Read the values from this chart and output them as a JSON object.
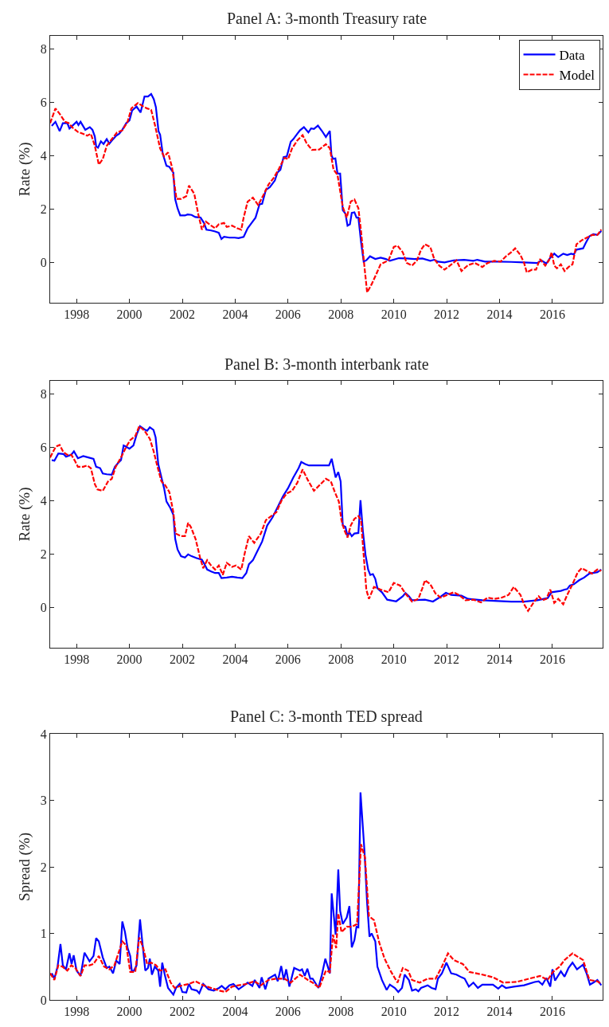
{
  "chart_data": [
    {
      "type": "line",
      "title": "Panel A: 3-month Treasury rate",
      "ylabel": "Rate (%)",
      "xlim": [
        1997.0,
        2017.9
      ],
      "xticks": [
        1998,
        2000,
        2002,
        2004,
        2006,
        2008,
        2010,
        2012,
        2014,
        2016
      ],
      "ylim": [
        -1.5,
        8.5
      ],
      "yticks": [
        0,
        2,
        4,
        6,
        8
      ],
      "legend": "top right",
      "series": [
        {
          "name": "Data",
          "color": "#0000ff",
          "line_style": "solid",
          "x": [
            1997.06,
            1997.2,
            1997.36,
            1997.48,
            1997.65,
            1997.73,
            1998.0,
            1998.07,
            1998.15,
            1998.33,
            1998.5,
            1998.6,
            1998.69,
            1998.74,
            1998.81,
            1998.92,
            1999.02,
            1999.14,
            1999.24,
            1999.38,
            1999.5,
            1999.61,
            1999.73,
            1999.88,
            2000.0,
            2000.1,
            2000.27,
            2000.42,
            2000.57,
            2000.7,
            2000.82,
            2000.92,
            2001.0,
            2001.1,
            2001.16,
            2001.26,
            2001.4,
            2001.5,
            2001.66,
            2001.73,
            2001.82,
            2001.92,
            2002.1,
            2002.2,
            2002.35,
            2002.49,
            2002.69,
            2002.82,
            2002.91,
            2003.09,
            2003.24,
            2003.38,
            2003.48,
            2003.58,
            2003.78,
            2003.98,
            2004.13,
            2004.32,
            2004.47,
            2004.62,
            2004.77,
            2004.92,
            2005.02,
            2005.16,
            2005.31,
            2005.5,
            2005.6,
            2005.71,
            2005.83,
            2005.95,
            2006.1,
            2006.2,
            2006.35,
            2006.45,
            2006.6,
            2006.77,
            2006.87,
            2006.98,
            2007.13,
            2007.28,
            2007.43,
            2007.58,
            2007.64,
            2007.7,
            2007.79,
            2007.87,
            2007.97,
            2008.07,
            2008.17,
            2008.25,
            2008.34,
            2008.41,
            2008.51,
            2008.59,
            2008.66,
            2008.76,
            2008.86,
            2008.96,
            2009.1,
            2009.3,
            2009.5,
            2009.7,
            2009.85,
            2010.19,
            2010.49,
            2010.79,
            2011.08,
            2011.38,
            2011.53,
            2011.67,
            2011.92,
            2012.27,
            2012.66,
            2013.01,
            2013.16,
            2013.45,
            2013.95,
            2014.44,
            2014.93,
            2015.43,
            2015.58,
            2015.77,
            2015.92,
            2016.07,
            2016.22,
            2016.41,
            2016.56,
            2016.71,
            2016.81,
            2016.91,
            2017.16,
            2017.26,
            2017.4,
            2017.55,
            2017.7,
            2017.85
          ],
          "values": [
            5.13,
            5.28,
            4.93,
            5.23,
            5.23,
            5.03,
            5.28,
            5.16,
            5.28,
            4.98,
            5.08,
            4.98,
            4.73,
            4.36,
            4.31,
            4.55,
            4.45,
            4.63,
            4.46,
            4.63,
            4.76,
            4.83,
            4.98,
            5.23,
            5.33,
            5.7,
            5.85,
            5.63,
            6.23,
            6.23,
            6.32,
            6.13,
            5.83,
            4.93,
            4.8,
            4.08,
            3.63,
            3.6,
            3.38,
            2.38,
            2.04,
            1.77,
            1.77,
            1.81,
            1.79,
            1.71,
            1.69,
            1.49,
            1.24,
            1.21,
            1.17,
            1.12,
            0.89,
            0.97,
            0.94,
            0.94,
            0.92,
            0.97,
            1.29,
            1.49,
            1.69,
            2.19,
            2.21,
            2.73,
            2.83,
            3.08,
            3.38,
            3.48,
            3.96,
            3.98,
            4.53,
            4.63,
            4.83,
            4.96,
            5.08,
            4.88,
            5.03,
            5.01,
            5.14,
            4.94,
            4.71,
            4.94,
            4.04,
            3.89,
            3.91,
            3.34,
            3.34,
            1.97,
            1.84,
            1.39,
            1.44,
            1.87,
            1.89,
            1.69,
            1.69,
            0.79,
            0.04,
            0.09,
            0.24,
            0.14,
            0.19,
            0.14,
            0.07,
            0.17,
            0.16,
            0.14,
            0.16,
            0.07,
            0.11,
            0.04,
            0.01,
            0.09,
            0.11,
            0.07,
            0.11,
            0.04,
            0.04,
            0.03,
            0.01,
            -0.01,
            0.09,
            -0.03,
            0.19,
            0.34,
            0.21,
            0.34,
            0.29,
            0.34,
            0.31,
            0.49,
            0.54,
            0.74,
            0.99,
            1.07,
            1.04,
            1.19
          ]
        },
        {
          "name": "Model",
          "color": "#ff0000",
          "line_style": "dashed",
          "x": [
            1997.0,
            1997.2,
            1997.36,
            1997.56,
            1997.7,
            1997.85,
            1998.05,
            1998.25,
            1998.4,
            1998.54,
            1998.69,
            1998.84,
            1998.99,
            1999.14,
            1999.33,
            1999.53,
            1999.73,
            1999.93,
            2000.07,
            2000.32,
            2000.52,
            2000.67,
            2000.82,
            2000.96,
            2001.16,
            2001.31,
            2001.46,
            2001.61,
            2001.78,
            2001.95,
            2002.15,
            2002.25,
            2002.45,
            2002.61,
            2002.74,
            2002.89,
            2003.09,
            2003.24,
            2003.38,
            2003.58,
            2003.68,
            2003.88,
            2004.08,
            2004.23,
            2004.32,
            2004.47,
            2004.67,
            2004.87,
            2005.07,
            2005.26,
            2005.46,
            2005.66,
            2005.86,
            2006.0,
            2006.15,
            2006.35,
            2006.55,
            2006.7,
            2006.9,
            2007.18,
            2007.43,
            2007.58,
            2007.72,
            2007.87,
            2007.97,
            2008.07,
            2008.22,
            2008.37,
            2008.51,
            2008.66,
            2008.76,
            2008.86,
            2008.99,
            2009.16,
            2009.3,
            2009.5,
            2009.8,
            2010.0,
            2010.14,
            2010.34,
            2010.49,
            2010.69,
            2010.88,
            2011.03,
            2011.18,
            2011.38,
            2011.53,
            2011.72,
            2011.92,
            2012.12,
            2012.37,
            2012.56,
            2012.81,
            2013.06,
            2013.35,
            2013.55,
            2013.8,
            2014.04,
            2014.24,
            2014.44,
            2014.59,
            2014.79,
            2014.93,
            2015.03,
            2015.23,
            2015.38,
            2015.53,
            2015.73,
            2015.87,
            2015.97,
            2016.07,
            2016.17,
            2016.32,
            2016.46,
            2016.61,
            2016.76,
            2016.91,
            2017.11,
            2017.3,
            2017.5,
            2017.7,
            2017.85
          ],
          "values": [
            5.23,
            5.78,
            5.58,
            5.28,
            5.23,
            5.06,
            4.9,
            4.83,
            4.76,
            4.83,
            4.38,
            3.68,
            3.88,
            4.38,
            4.63,
            4.88,
            4.96,
            5.28,
            5.78,
            5.98,
            5.86,
            5.78,
            5.73,
            5.18,
            4.28,
            3.98,
            4.13,
            3.58,
            2.39,
            2.39,
            2.49,
            2.89,
            2.59,
            1.79,
            1.24,
            1.54,
            1.39,
            1.29,
            1.44,
            1.49,
            1.34,
            1.39,
            1.29,
            1.24,
            1.69,
            2.29,
            2.44,
            2.16,
            2.54,
            2.93,
            3.18,
            3.53,
            3.93,
            3.88,
            4.28,
            4.58,
            4.78,
            4.48,
            4.23,
            4.24,
            4.44,
            4.29,
            3.49,
            3.29,
            2.69,
            2.09,
            1.69,
            2.29,
            2.37,
            2.04,
            1.19,
            0.14,
            -1.11,
            -0.81,
            -0.51,
            -0.06,
            0.09,
            0.59,
            0.64,
            0.39,
            -0.01,
            -0.11,
            0.09,
            0.49,
            0.69,
            0.59,
            0.14,
            -0.11,
            -0.26,
            -0.11,
            0.09,
            -0.31,
            -0.09,
            -0.01,
            -0.16,
            -0.01,
            0.07,
            0.04,
            0.24,
            0.39,
            0.54,
            0.29,
            -0.01,
            -0.36,
            -0.26,
            -0.26,
            0.14,
            -0.11,
            0.09,
            0.39,
            -0.11,
            -0.21,
            -0.06,
            -0.31,
            -0.16,
            -0.06,
            0.69,
            0.84,
            0.94,
            1.04,
            1.04,
            1.24
          ]
        }
      ]
    },
    {
      "type": "line",
      "title": "Panel B: 3-month interbank rate",
      "ylabel": "Rate (%)",
      "xlim": [
        1997.0,
        2017.9
      ],
      "xticks": [
        1998,
        2000,
        2002,
        2004,
        2006,
        2008,
        2010,
        2012,
        2014,
        2016
      ],
      "ylim": [
        -1.5,
        8.5
      ],
      "yticks": [
        0,
        2,
        4,
        6,
        8
      ],
      "series": [
        {
          "color": "#0000ff",
          "line_style": "solid",
          "x": [
            1997.06,
            1997.16,
            1997.31,
            1997.5,
            1997.6,
            1997.8,
            1997.9,
            1998.05,
            1998.25,
            1998.44,
            1998.64,
            1998.74,
            1998.89,
            1998.99,
            1999.14,
            1999.33,
            1999.45,
            1999.58,
            1999.68,
            1999.78,
            1999.88,
            2000.0,
            2000.15,
            2000.27,
            2000.4,
            2000.57,
            2000.67,
            2000.77,
            2000.91,
            2000.99,
            2001.09,
            2001.21,
            2001.31,
            2001.4,
            2001.55,
            2001.66,
            2001.73,
            2001.82,
            2001.95,
            2002.1,
            2002.22,
            2002.35,
            2002.54,
            2002.74,
            2002.84,
            2002.94,
            2003.09,
            2003.24,
            2003.38,
            2003.48,
            2003.68,
            2003.88,
            2004.08,
            2004.27,
            2004.42,
            2004.52,
            2004.67,
            2004.82,
            2005.02,
            2005.21,
            2005.41,
            2005.61,
            2005.81,
            2006.0,
            2006.2,
            2006.4,
            2006.5,
            2006.65,
            2006.79,
            2007.13,
            2007.55,
            2007.65,
            2007.8,
            2007.9,
            2007.99,
            2008.07,
            2008.17,
            2008.25,
            2008.32,
            2008.41,
            2008.51,
            2008.66,
            2008.74,
            2008.83,
            2008.93,
            2009.03,
            2009.11,
            2009.21,
            2009.3,
            2009.38,
            2009.55,
            2009.75,
            2010.09,
            2010.34,
            2010.44,
            2010.57,
            2010.69,
            2011.18,
            2011.48,
            2011.72,
            2011.97,
            2012.17,
            2012.56,
            2012.81,
            2013.35,
            2013.95,
            2014.44,
            2014.93,
            2015.43,
            2015.82,
            2015.97,
            2016.32,
            2016.46,
            2016.56,
            2016.66,
            2016.81,
            2017.01,
            2017.2,
            2017.4,
            2017.7,
            2017.85
          ],
          "values": [
            5.53,
            5.51,
            5.78,
            5.76,
            5.66,
            5.73,
            5.86,
            5.6,
            5.68,
            5.63,
            5.58,
            5.28,
            5.23,
            5.03,
            5.0,
            4.98,
            5.28,
            5.43,
            5.53,
            6.08,
            6.03,
            5.96,
            6.08,
            6.48,
            6.8,
            6.68,
            6.63,
            6.76,
            6.66,
            6.38,
            5.38,
            4.88,
            4.48,
            3.98,
            3.73,
            3.48,
            2.58,
            2.18,
            1.93,
            1.88,
            2.0,
            1.93,
            1.86,
            1.8,
            1.63,
            1.43,
            1.36,
            1.3,
            1.3,
            1.11,
            1.13,
            1.16,
            1.13,
            1.11,
            1.3,
            1.63,
            1.78,
            2.08,
            2.48,
            3.08,
            3.38,
            3.78,
            4.18,
            4.48,
            4.88,
            5.23,
            5.46,
            5.38,
            5.33,
            5.33,
            5.33,
            5.58,
            4.88,
            5.08,
            4.73,
            3.08,
            3.03,
            2.68,
            2.83,
            2.68,
            2.78,
            2.8,
            4.03,
            2.88,
            1.98,
            1.43,
            1.23,
            1.26,
            1.08,
            0.73,
            0.58,
            0.3,
            0.24,
            0.43,
            0.55,
            0.43,
            0.28,
            0.3,
            0.23,
            0.38,
            0.56,
            0.48,
            0.45,
            0.33,
            0.28,
            0.25,
            0.23,
            0.23,
            0.28,
            0.36,
            0.58,
            0.63,
            0.68,
            0.7,
            0.83,
            0.88,
            1.03,
            1.13,
            1.28,
            1.33,
            1.43
          ]
        },
        {
          "color": "#ff0000",
          "line_style": "dashed",
          "x": [
            1997.0,
            1997.21,
            1997.36,
            1997.5,
            1997.65,
            1997.8,
            1997.95,
            1998.05,
            1998.25,
            1998.4,
            1998.54,
            1998.69,
            1998.79,
            1998.99,
            1999.19,
            1999.33,
            1999.48,
            1999.68,
            1999.88,
            2000.03,
            2000.22,
            2000.37,
            2000.57,
            2000.77,
            2000.91,
            2001.06,
            2001.21,
            2001.36,
            2001.51,
            2001.66,
            2001.75,
            2001.95,
            2002.1,
            2002.22,
            2002.32,
            2002.5,
            2002.67,
            2002.79,
            2002.94,
            2003.09,
            2003.24,
            2003.38,
            2003.53,
            2003.68,
            2003.88,
            2004.03,
            2004.23,
            2004.37,
            2004.52,
            2004.72,
            2004.97,
            2005.16,
            2005.36,
            2005.56,
            2005.76,
            2005.95,
            2006.15,
            2006.35,
            2006.55,
            2006.75,
            2006.98,
            2007.18,
            2007.43,
            2007.62,
            2007.77,
            2007.92,
            2008.02,
            2008.12,
            2008.25,
            2008.37,
            2008.51,
            2008.66,
            2008.76,
            2008.86,
            2008.96,
            2009.06,
            2009.25,
            2009.5,
            2009.8,
            2010.0,
            2010.24,
            2010.44,
            2010.69,
            2010.93,
            2011.08,
            2011.18,
            2011.38,
            2011.58,
            2011.77,
            2012.02,
            2012.27,
            2012.46,
            2012.71,
            2013.01,
            2013.3,
            2013.55,
            2013.8,
            2014.09,
            2014.34,
            2014.54,
            2014.79,
            2014.93,
            2015.08,
            2015.28,
            2015.48,
            2015.62,
            2015.77,
            2015.92,
            2016.07,
            2016.22,
            2016.41,
            2016.56,
            2016.76,
            2016.96,
            2017.11,
            2017.3,
            2017.5,
            2017.7,
            2017.85
          ],
          "values": [
            5.63,
            6.03,
            6.1,
            5.83,
            5.73,
            5.73,
            5.48,
            5.28,
            5.28,
            5.33,
            5.23,
            4.63,
            4.43,
            4.38,
            4.73,
            4.83,
            5.28,
            5.63,
            6.03,
            6.28,
            6.43,
            6.8,
            6.63,
            6.33,
            5.88,
            5.28,
            4.73,
            4.58,
            4.33,
            3.58,
            2.78,
            2.68,
            2.68,
            3.18,
            3.03,
            2.58,
            1.88,
            1.48,
            1.78,
            1.58,
            1.43,
            1.58,
            1.23,
            1.68,
            1.53,
            1.58,
            1.43,
            2.08,
            2.68,
            2.43,
            2.78,
            3.28,
            3.43,
            3.58,
            4.03,
            4.28,
            4.38,
            4.68,
            5.18,
            4.78,
            4.38,
            4.58,
            4.83,
            4.73,
            4.33,
            3.98,
            3.28,
            2.93,
            2.63,
            3.08,
            3.33,
            3.43,
            3.28,
            1.98,
            0.68,
            0.33,
            0.78,
            0.68,
            0.58,
            0.93,
            0.83,
            0.53,
            0.23,
            0.33,
            0.73,
            1.03,
            0.88,
            0.53,
            0.38,
            0.48,
            0.58,
            0.48,
            0.28,
            0.3,
            0.2,
            0.38,
            0.33,
            0.38,
            0.48,
            0.78,
            0.48,
            0.13,
            -0.12,
            0.18,
            0.43,
            0.28,
            0.33,
            0.68,
            0.18,
            0.33,
            0.13,
            0.48,
            0.88,
            1.33,
            1.48,
            1.38,
            1.28,
            1.43,
            1.38
          ]
        }
      ]
    },
    {
      "type": "line",
      "title": "Panel C: 3-month TED spread",
      "ylabel": "Spread (%)",
      "xlim": [
        1997.0,
        2017.9
      ],
      "xticks": [
        1998,
        2000,
        2002,
        2004,
        2006,
        2008,
        2010,
        2012,
        2014,
        2016
      ],
      "ylim": [
        0,
        4
      ],
      "yticks": [
        0,
        1,
        2,
        3,
        4
      ],
      "series": [
        {
          "color": "#0000ff",
          "line_style": "solid",
          "x": [
            1997.06,
            1997.16,
            1997.28,
            1997.39,
            1997.48,
            1997.6,
            1997.73,
            1997.81,
            1997.89,
            1998.0,
            1998.15,
            1998.3,
            1998.49,
            1998.64,
            1998.74,
            1998.84,
            1998.99,
            1999.14,
            1999.24,
            1999.38,
            1999.5,
            1999.63,
            1999.73,
            1999.83,
            1999.93,
            2000.03,
            2000.09,
            2000.17,
            2000.27,
            2000.4,
            2000.5,
            2000.6,
            2000.7,
            2000.77,
            2000.85,
            2000.96,
            2001.09,
            2001.16,
            2001.24,
            2001.33,
            2001.46,
            2001.66,
            2001.76,
            2001.9,
            2002.0,
            2002.15,
            2002.25,
            2002.35,
            2002.55,
            2002.64,
            2002.79,
            2002.99,
            2003.19,
            2003.39,
            2003.49,
            2003.63,
            2003.78,
            2003.93,
            2004.13,
            2004.27,
            2004.47,
            2004.65,
            2004.74,
            2004.92,
            2005.0,
            2005.14,
            2005.26,
            2005.51,
            2005.61,
            2005.74,
            2005.84,
            2005.93,
            2006.05,
            2006.23,
            2006.45,
            2006.53,
            2006.63,
            2006.73,
            2006.84,
            2006.93,
            2007.15,
            2007.28,
            2007.41,
            2007.58,
            2007.65,
            2007.8,
            2007.9,
            2007.97,
            2008.07,
            2008.22,
            2008.32,
            2008.41,
            2008.51,
            2008.59,
            2008.66,
            2008.74,
            2008.89,
            2008.99,
            2009.08,
            2009.16,
            2009.3,
            2009.38,
            2009.55,
            2009.73,
            2009.85,
            2010.04,
            2010.17,
            2010.31,
            2010.41,
            2010.57,
            2010.69,
            2010.83,
            2010.93,
            2011.03,
            2011.28,
            2011.43,
            2011.58,
            2011.67,
            2011.82,
            2011.99,
            2012.17,
            2012.37,
            2012.56,
            2012.68,
            2012.84,
            2013.01,
            2013.18,
            2013.35,
            2013.75,
            2013.95,
            2014.09,
            2014.24,
            2014.54,
            2014.93,
            2015.33,
            2015.48,
            2015.62,
            2015.77,
            2015.92,
            2016.0,
            2016.1,
            2016.32,
            2016.46,
            2016.61,
            2016.76,
            2016.93,
            2017.16,
            2017.3,
            2017.42,
            2017.55,
            2017.7,
            2017.85
          ],
          "values": [
            0.4,
            0.32,
            0.5,
            0.84,
            0.52,
            0.46,
            0.7,
            0.54,
            0.67,
            0.44,
            0.36,
            0.71,
            0.58,
            0.66,
            0.93,
            0.88,
            0.64,
            0.48,
            0.5,
            0.4,
            0.59,
            0.54,
            1.18,
            1.02,
            0.78,
            0.66,
            0.43,
            0.44,
            0.52,
            1.21,
            0.82,
            0.44,
            0.48,
            0.62,
            0.38,
            0.5,
            0.44,
            0.2,
            0.56,
            0.39,
            0.18,
            0.08,
            0.18,
            0.24,
            0.12,
            0.11,
            0.24,
            0.16,
            0.14,
            0.1,
            0.24,
            0.16,
            0.14,
            0.18,
            0.21,
            0.16,
            0.22,
            0.24,
            0.16,
            0.2,
            0.26,
            0.21,
            0.3,
            0.18,
            0.34,
            0.16,
            0.32,
            0.38,
            0.28,
            0.51,
            0.3,
            0.46,
            0.2,
            0.48,
            0.44,
            0.46,
            0.36,
            0.47,
            0.32,
            0.32,
            0.18,
            0.38,
            0.62,
            0.4,
            1.6,
            0.98,
            1.96,
            1.34,
            1.14,
            1.24,
            1.41,
            0.79,
            0.9,
            1.1,
            1.09,
            3.12,
            2.24,
            1.46,
            0.95,
            1.0,
            0.88,
            0.5,
            0.3,
            0.15,
            0.23,
            0.18,
            0.12,
            0.18,
            0.38,
            0.3,
            0.14,
            0.16,
            0.13,
            0.18,
            0.22,
            0.18,
            0.16,
            0.32,
            0.4,
            0.56,
            0.4,
            0.38,
            0.34,
            0.32,
            0.2,
            0.26,
            0.18,
            0.23,
            0.23,
            0.17,
            0.22,
            0.18,
            0.2,
            0.22,
            0.27,
            0.28,
            0.23,
            0.33,
            0.2,
            0.46,
            0.29,
            0.43,
            0.35,
            0.48,
            0.56,
            0.46,
            0.53,
            0.39,
            0.23,
            0.26,
            0.3,
            0.22
          ]
        },
        {
          "color": "#ff0000",
          "line_style": "dashed",
          "x": [
            1997.0,
            1997.16,
            1997.31,
            1997.46,
            1997.65,
            1997.8,
            1997.95,
            1998.15,
            1998.3,
            1998.49,
            1998.64,
            1998.84,
            1999.04,
            1999.24,
            1999.43,
            1999.58,
            1999.73,
            1999.88,
            2000.03,
            2000.22,
            2000.37,
            2000.52,
            2000.67,
            2000.82,
            2001.01,
            2001.16,
            2001.36,
            2001.56,
            2001.71,
            2002.0,
            2002.25,
            2002.5,
            2002.79,
            2003.09,
            2003.39,
            2003.63,
            2003.88,
            2004.13,
            2004.42,
            2004.72,
            2004.97,
            2005.26,
            2005.56,
            2005.86,
            2006.1,
            2006.45,
            2006.75,
            2006.93,
            2007.18,
            2007.43,
            2007.58,
            2007.7,
            2007.82,
            2007.9,
            2008.02,
            2008.22,
            2008.41,
            2008.61,
            2008.76,
            2008.91,
            2009.06,
            2009.25,
            2009.45,
            2009.65,
            2009.9,
            2010.14,
            2010.34,
            2010.54,
            2010.69,
            2010.98,
            2011.28,
            2011.58,
            2011.82,
            2012.05,
            2012.27,
            2012.61,
            2012.86,
            2013.35,
            2013.75,
            2014.14,
            2014.64,
            2015.13,
            2015.53,
            2015.82,
            2016.02,
            2016.27,
            2016.46,
            2016.76,
            2016.91,
            2017.16,
            2017.4,
            2017.7,
            2017.85
          ],
          "values": [
            0.4,
            0.3,
            0.52,
            0.5,
            0.44,
            0.52,
            0.48,
            0.36,
            0.52,
            0.52,
            0.54,
            0.66,
            0.5,
            0.46,
            0.52,
            0.7,
            0.88,
            0.82,
            0.42,
            0.42,
            0.94,
            0.78,
            0.54,
            0.56,
            0.52,
            0.44,
            0.46,
            0.26,
            0.18,
            0.22,
            0.24,
            0.28,
            0.22,
            0.18,
            0.14,
            0.12,
            0.2,
            0.22,
            0.24,
            0.28,
            0.22,
            0.3,
            0.32,
            0.32,
            0.26,
            0.38,
            0.3,
            0.26,
            0.18,
            0.44,
            0.42,
            0.98,
            0.78,
            1.3,
            1.02,
            1.1,
            1.1,
            1.14,
            2.34,
            2.14,
            1.26,
            1.2,
            0.86,
            0.62,
            0.42,
            0.26,
            0.48,
            0.44,
            0.3,
            0.26,
            0.32,
            0.32,
            0.5,
            0.7,
            0.6,
            0.54,
            0.42,
            0.38,
            0.34,
            0.26,
            0.27,
            0.32,
            0.36,
            0.3,
            0.42,
            0.5,
            0.6,
            0.7,
            0.66,
            0.6,
            0.3,
            0.28,
            0.24
          ]
        }
      ]
    }
  ]
}
